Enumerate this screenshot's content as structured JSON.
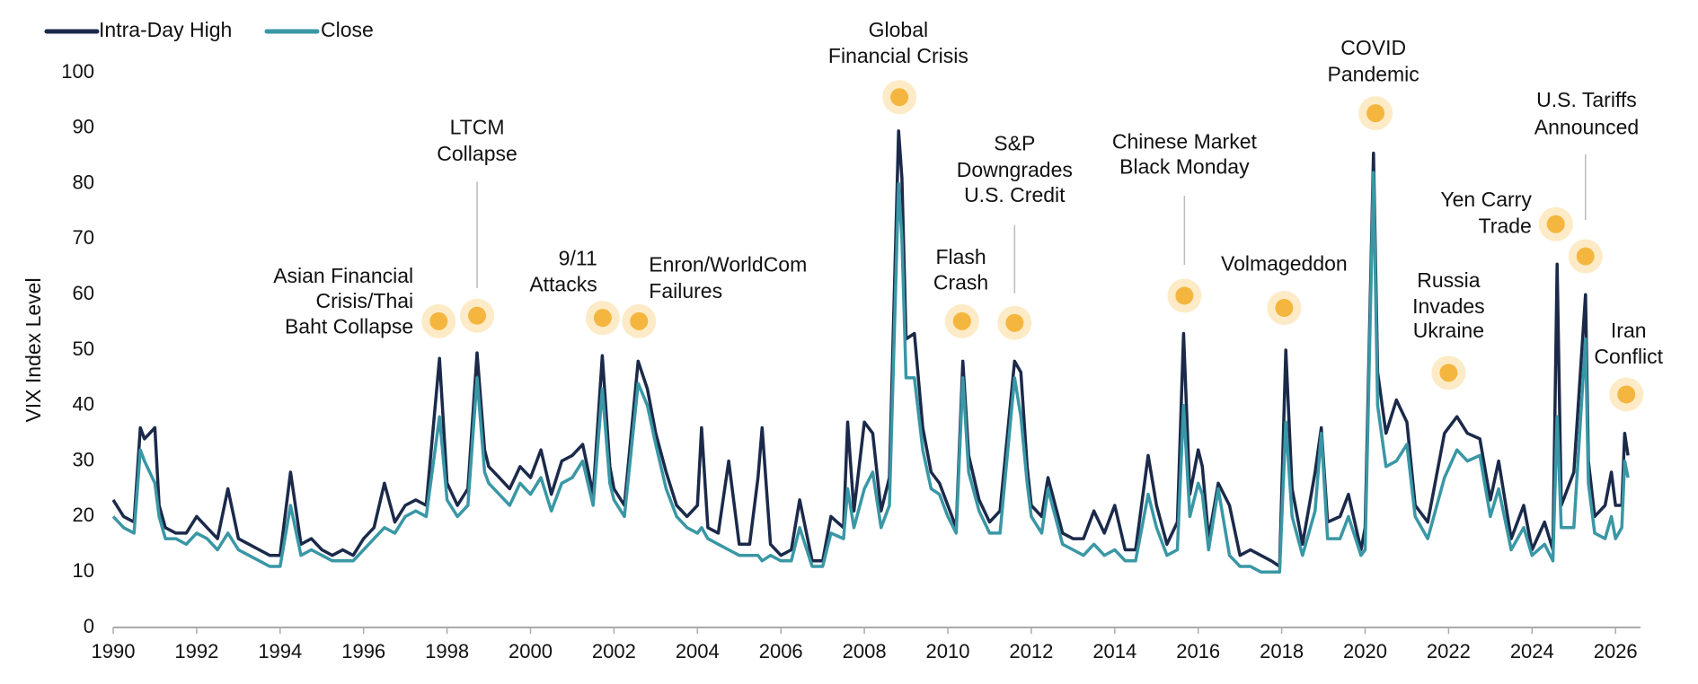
{
  "chart_data": {
    "type": "line",
    "y_label": "VIX Index Level",
    "x": [
      1990.0,
      1990.25,
      1990.5,
      1990.65,
      1990.75,
      1991.0,
      1991.1,
      1991.25,
      1991.5,
      1991.75,
      1992.0,
      1992.25,
      1992.5,
      1992.75,
      1993.0,
      1993.25,
      1993.5,
      1993.75,
      1994.0,
      1994.25,
      1994.5,
      1994.75,
      1995.0,
      1995.25,
      1995.5,
      1995.75,
      1996.0,
      1996.25,
      1996.5,
      1996.75,
      1997.0,
      1997.25,
      1997.5,
      1997.82,
      1998.0,
      1998.25,
      1998.5,
      1998.72,
      1998.9,
      1999.0,
      1999.25,
      1999.5,
      1999.75,
      2000.0,
      2000.25,
      2000.5,
      2000.75,
      2001.0,
      2001.25,
      2001.5,
      2001.72,
      2001.9,
      2002.0,
      2002.25,
      2002.58,
      2002.8,
      2003.0,
      2003.25,
      2003.5,
      2003.75,
      2004.0,
      2004.1,
      2004.25,
      2004.5,
      2004.75,
      2005.0,
      2005.25,
      2005.45,
      2005.55,
      2005.75,
      2006.0,
      2006.25,
      2006.45,
      2006.75,
      2007.0,
      2007.2,
      2007.5,
      2007.6,
      2007.75,
      2008.0,
      2008.2,
      2008.4,
      2008.6,
      2008.82,
      2008.9,
      2009.0,
      2009.2,
      2009.4,
      2009.6,
      2009.8,
      2010.0,
      2010.2,
      2010.36,
      2010.5,
      2010.75,
      2011.0,
      2011.25,
      2011.6,
      2011.75,
      2011.9,
      2012.0,
      2012.25,
      2012.4,
      2012.75,
      2013.0,
      2013.25,
      2013.5,
      2013.75,
      2014.0,
      2014.25,
      2014.5,
      2014.8,
      2015.0,
      2015.25,
      2015.5,
      2015.65,
      2015.8,
      2016.0,
      2016.1,
      2016.25,
      2016.48,
      2016.75,
      2017.0,
      2017.25,
      2017.5,
      2017.75,
      2017.95,
      2018.1,
      2018.25,
      2018.5,
      2018.8,
      2018.95,
      2019.1,
      2019.4,
      2019.6,
      2019.9,
      2020.0,
      2020.2,
      2020.3,
      2020.5,
      2020.75,
      2021.0,
      2021.2,
      2021.5,
      2021.9,
      2022.2,
      2022.45,
      2022.75,
      2023.0,
      2023.2,
      2023.5,
      2023.8,
      2024.0,
      2024.3,
      2024.5,
      2024.6,
      2024.7,
      2025.0,
      2025.28,
      2025.35,
      2025.5,
      2025.75,
      2025.9,
      2026.0,
      2026.15,
      2026.22,
      2026.3
    ],
    "series": [
      {
        "name": "Intra-Day High",
        "color": "#1b2a4a",
        "values": [
          23,
          20,
          19,
          36,
          34,
          36,
          22,
          18,
          17,
          17,
          20,
          18,
          16,
          25,
          16,
          15,
          14,
          13,
          13,
          28,
          15,
          16,
          14,
          13,
          14,
          13,
          16,
          18,
          26,
          19,
          22,
          23,
          22,
          48.5,
          26,
          22,
          25,
          49.5,
          32,
          29,
          27,
          25,
          29,
          27,
          32,
          24,
          30,
          31,
          33,
          24,
          49,
          29,
          25,
          22,
          48,
          43,
          35,
          28,
          22,
          20,
          22,
          36,
          18,
          17,
          30,
          15,
          15,
          27,
          36,
          15,
          13,
          14,
          23,
          12,
          12,
          20,
          18,
          37,
          21,
          37,
          35,
          21,
          27,
          89.5,
          81,
          52,
          53,
          36,
          28,
          26,
          22,
          18,
          48,
          31,
          23,
          19,
          21,
          48,
          46,
          29,
          22,
          20,
          27,
          17,
          16,
          16,
          21,
          17,
          22,
          14,
          14,
          31,
          22,
          15,
          19,
          53,
          24,
          32,
          29,
          16,
          26,
          22,
          13,
          14,
          13,
          12,
          11,
          50,
          25,
          15,
          28,
          36,
          19,
          20,
          24,
          14,
          18,
          85.5,
          46,
          35,
          41,
          37,
          22,
          19,
          35,
          38,
          35,
          34,
          23,
          30,
          16,
          22,
          14,
          19,
          14,
          65.5,
          22,
          28,
          60,
          30,
          20,
          22,
          28,
          22,
          22,
          35,
          31
        ]
      },
      {
        "name": "Close",
        "color": "#3a97a5",
        "values": [
          20,
          18,
          17,
          32,
          30,
          26,
          20,
          16,
          16,
          15,
          17,
          16,
          14,
          17,
          14,
          13,
          12,
          11,
          11,
          22,
          13,
          14,
          13,
          12,
          12,
          12,
          14,
          16,
          18,
          17,
          20,
          21,
          20,
          38,
          23,
          20,
          22,
          45,
          28,
          26,
          24,
          22,
          26,
          24,
          27,
          21,
          26,
          27,
          30,
          22,
          43,
          26,
          23,
          20,
          44,
          40,
          33,
          25,
          20,
          18,
          17,
          18,
          16,
          15,
          14,
          13,
          13,
          13,
          12,
          13,
          12,
          12,
          18,
          11,
          11,
          17,
          16,
          25,
          18,
          25,
          28,
          18,
          22,
          80,
          70,
          45,
          45,
          32,
          25,
          24,
          20,
          17,
          45,
          28,
          21,
          17,
          17,
          45,
          38,
          26,
          20,
          17,
          25,
          15,
          14,
          13,
          15,
          13,
          14,
          12,
          12,
          24,
          18,
          13,
          14,
          40,
          20,
          26,
          24,
          14,
          25,
          13,
          11,
          11,
          10,
          10,
          10,
          37,
          20,
          13,
          21,
          35,
          16,
          16,
          20,
          13,
          14,
          82,
          40,
          29,
          30,
          33,
          20,
          16,
          27,
          32,
          30,
          31,
          20,
          25,
          14,
          18,
          13,
          15,
          12,
          38,
          18,
          18,
          52,
          26,
          17,
          16,
          20,
          16,
          18,
          30,
          27
        ]
      }
    ],
    "xlim": [
      1990,
      2026.6
    ],
    "xticks": [
      1990,
      1992,
      1994,
      1996,
      1998,
      2000,
      2002,
      2004,
      2006,
      2008,
      2010,
      2012,
      2014,
      2016,
      2018,
      2020,
      2022,
      2024,
      2026
    ],
    "ylim": [
      0,
      100
    ],
    "yticks": [
      0,
      10,
      20,
      30,
      40,
      50,
      60,
      70,
      80,
      90,
      100
    ],
    "legend": "top-left",
    "annotations": [
      {
        "lines": [
          "Asian Financial",
          "Crisis/Thai",
          "Baht Collapse"
        ],
        "x": 1997.8,
        "y": 55.2
      },
      {
        "lines": [
          "LTCM",
          "Collapse"
        ],
        "x": 1998.72,
        "y": 56.2
      },
      {
        "lines": [
          "9/11",
          "Attacks"
        ],
        "x": 2001.73,
        "y": 55.8
      },
      {
        "lines": [
          "Enron/WorldCom",
          "Failures"
        ],
        "x": 2002.6,
        "y": 55.2
      },
      {
        "lines": [
          "Global",
          "Financial Crisis"
        ],
        "x": 2008.84,
        "y": 95.6
      },
      {
        "lines": [
          "Flash",
          "Crash"
        ],
        "x": 2010.34,
        "y": 55.2
      },
      {
        "lines": [
          "S&P",
          "Downgrades",
          "U.S. Credit"
        ],
        "x": 2011.6,
        "y": 54.9
      },
      {
        "lines": [
          "Chinese Market",
          "Black Monday"
        ],
        "x": 2015.67,
        "y": 59.8
      },
      {
        "lines": [
          "Volmageddon"
        ],
        "x": 2018.06,
        "y": 57.6
      },
      {
        "lines": [
          "COVID",
          "Pandemic"
        ],
        "x": 2020.25,
        "y": 92.7
      },
      {
        "lines": [
          "Russia",
          "Invades",
          "Ukraine"
        ],
        "x": 2022.0,
        "y": 45.9
      },
      {
        "lines": [
          "Yen Carry",
          "Trade"
        ],
        "x": 2024.57,
        "y": 72.7
      },
      {
        "lines": [
          "U.S. Tariffs",
          "Announced"
        ],
        "x": 2025.28,
        "y": 66.9
      },
      {
        "lines": [
          "Iran",
          "Conflict"
        ],
        "x": 2026.26,
        "y": 42.0
      }
    ]
  }
}
